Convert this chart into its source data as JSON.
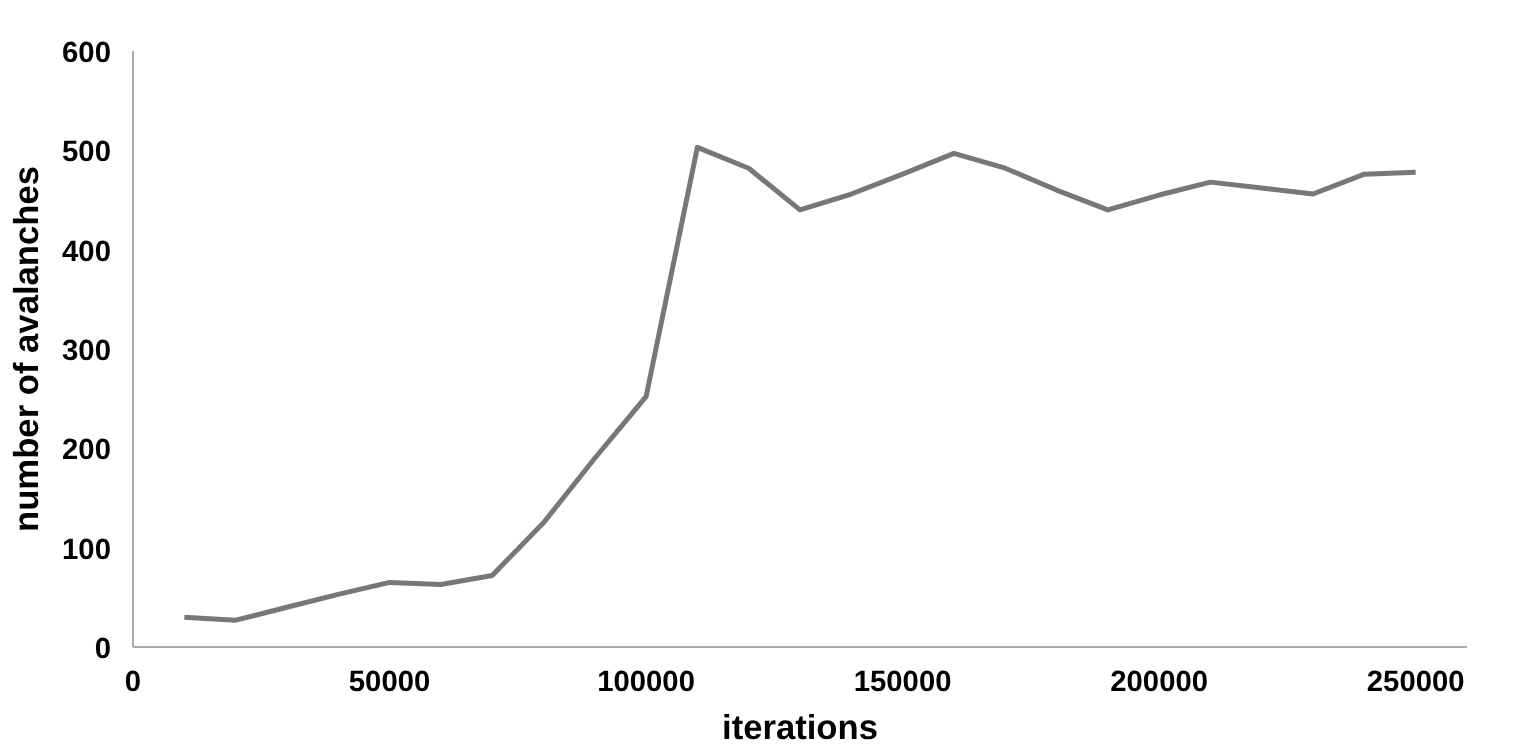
{
  "chart_data": {
    "type": "line",
    "xlabel": "iterations",
    "ylabel": "number of avalanches",
    "x": [
      10000,
      20000,
      30000,
      40000,
      50000,
      60000,
      70000,
      80000,
      90000,
      100000,
      110000,
      120000,
      130000,
      140000,
      150000,
      160000,
      170000,
      180000,
      190000,
      200000,
      210000,
      220000,
      230000,
      240000,
      250000
    ],
    "series": [
      {
        "color": "#777777",
        "values": [
          30,
          27,
          40,
          53,
          65,
          63,
          72,
          125,
          190,
          252,
          503,
          482,
          440,
          456,
          476,
          497,
          482,
          460,
          440,
          455,
          468,
          462,
          456,
          476,
          478
        ]
      }
    ],
    "xlim": [
      0,
      260000
    ],
    "xticks": [
      0,
      50000,
      100000,
      150000,
      200000,
      250000
    ],
    "ylim": [
      0,
      600
    ],
    "yticks": [
      0,
      100,
      200,
      300,
      400,
      500,
      600
    ],
    "grid": false,
    "marker": "none",
    "line_style": "solid"
  }
}
